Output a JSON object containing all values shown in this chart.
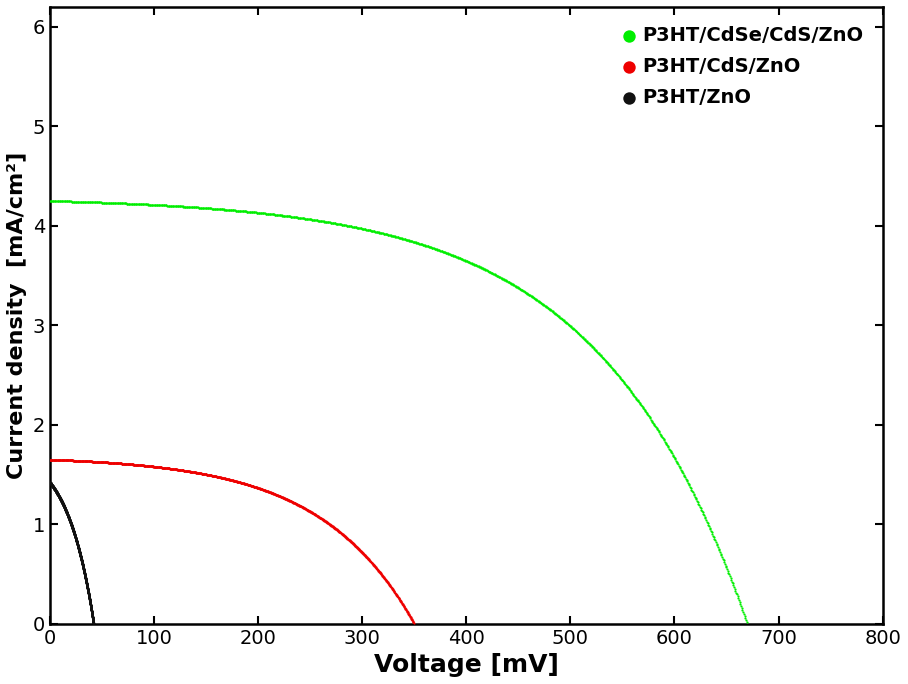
{
  "title": "",
  "xlabel": "Voltage [mV]",
  "ylabel": "Current density  [mA/cm²]",
  "xlim": [
    0,
    800
  ],
  "ylim": [
    0,
    6.2
  ],
  "xticks": [
    0,
    100,
    200,
    300,
    400,
    500,
    600,
    700,
    800
  ],
  "yticks": [
    0,
    1,
    2,
    3,
    4,
    5,
    6
  ],
  "curves": [
    {
      "Jsc": 4.25,
      "Voc": 670,
      "n": 5.5,
      "label": "P3HT/CdSe/CdS/ZnO",
      "color": "#00ee00"
    },
    {
      "Jsc": 1.65,
      "Voc": 350,
      "n": 3.5,
      "label": "P3HT/CdS/ZnO",
      "color": "#ee0000"
    },
    {
      "Jsc": 1.42,
      "Voc": 42,
      "n": 1.0,
      "label": "P3HT/ZnO",
      "color": "#111111"
    }
  ],
  "n_points": 1000,
  "marker_size": 2.5,
  "legend_marker_size": 80,
  "xlabel_fontsize": 18,
  "ylabel_fontsize": 16,
  "tick_fontsize": 14,
  "legend_fontsize": 14,
  "background_color": "#ffffff",
  "figsize": [
    9.08,
    6.84
  ],
  "dpi": 100
}
